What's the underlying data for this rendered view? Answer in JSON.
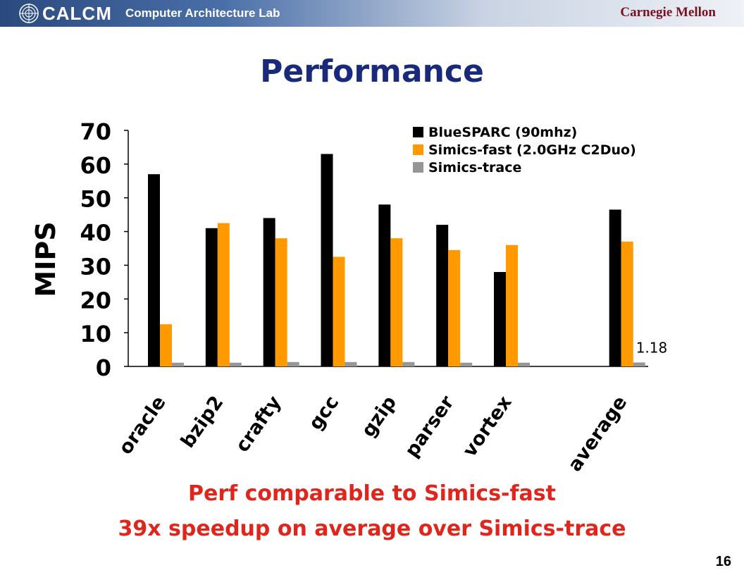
{
  "header": {
    "brand": "CALCM",
    "lab": "Computer Architecture Lab",
    "university": "Carnegie Mellon"
  },
  "slide": {
    "title": "Performance",
    "caption_line1": "Perf comparable to Simics-fast",
    "caption_line2": "39x speedup on average over Simics-trace",
    "page_number": "16"
  },
  "colors": {
    "header_dark": "#2a4a7f",
    "title": "#1a2a7a",
    "caption": "#e0261c"
  },
  "chart_data": {
    "type": "bar",
    "title": "",
    "xlabel": "",
    "ylabel": "MIPS",
    "ylim": [
      0,
      70
    ],
    "yticks": [
      "0",
      "10",
      "20",
      "30",
      "40",
      "50",
      "60",
      "70"
    ],
    "categories": [
      "oracle",
      "bzip2",
      "crafty",
      "gcc",
      "gzip",
      "parser",
      "vortex",
      "",
      "average"
    ],
    "series": [
      {
        "name": "BlueSPARC (90mhz)",
        "color": "#000000",
        "values": [
          57,
          41,
          44,
          63,
          48,
          42,
          28,
          null,
          46.5
        ]
      },
      {
        "name": "Simics-fast (2.0GHz C2Duo)",
        "color": "#ff9900",
        "values": [
          12.5,
          42.5,
          38,
          32.5,
          38,
          34.5,
          36,
          null,
          37
        ]
      },
      {
        "name": "Simics-trace",
        "color": "#969696",
        "values": [
          1.1,
          1.1,
          1.3,
          1.3,
          1.3,
          1.1,
          1.1,
          null,
          1.18
        ]
      }
    ],
    "annotations": [
      {
        "text": "1.18",
        "category": "average",
        "series": "Simics-trace"
      }
    ],
    "legend": "top-right",
    "grid": false
  }
}
